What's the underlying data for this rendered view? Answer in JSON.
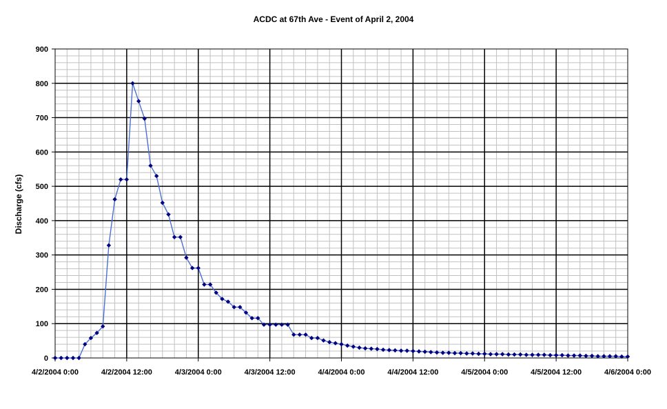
{
  "chart_data": {
    "type": "line",
    "title": "ACDC at 67th Ave - Event of April 2, 2004",
    "xlabel": "",
    "ylabel": "Discharge (cfs)",
    "ylim": [
      0,
      900
    ],
    "yticks": [
      0,
      100,
      200,
      300,
      400,
      500,
      600,
      700,
      800,
      900
    ],
    "xlim": [
      "2004-04-02T00:00",
      "2004-04-06T00:00"
    ],
    "xticks": [
      "4/2/2004 0:00",
      "4/2/2004 12:00",
      "4/3/2004 0:00",
      "4/3/2004 12:00",
      "4/4/2004 0:00",
      "4/4/2004 12:00",
      "4/5/2004 0:00",
      "4/5/2004 12:00",
      "4/6/2004 0:00"
    ],
    "grid": true,
    "legend": "none",
    "line_color": "#4a6fd6",
    "marker_color": "#000080",
    "series": [
      {
        "x": [
          "2004-04-02T00:00",
          "2004-04-02T01:00",
          "2004-04-02T02:00",
          "2004-04-02T03:00",
          "2004-04-02T04:00",
          "2004-04-02T05:00",
          "2004-04-02T06:00",
          "2004-04-02T07:00",
          "2004-04-02T08:00",
          "2004-04-02T09:00",
          "2004-04-02T10:00",
          "2004-04-02T11:00",
          "2004-04-02T12:00",
          "2004-04-02T13:00",
          "2004-04-02T14:00",
          "2004-04-02T15:00",
          "2004-04-02T16:00",
          "2004-04-02T17:00",
          "2004-04-02T18:00",
          "2004-04-02T19:00",
          "2004-04-02T20:00",
          "2004-04-02T21:00",
          "2004-04-02T22:00",
          "2004-04-02T23:00",
          "2004-04-03T00:00",
          "2004-04-03T01:00",
          "2004-04-03T02:00",
          "2004-04-03T03:00",
          "2004-04-03T04:00",
          "2004-04-03T05:00",
          "2004-04-03T06:00",
          "2004-04-03T07:00",
          "2004-04-03T08:00",
          "2004-04-03T09:00",
          "2004-04-03T10:00",
          "2004-04-03T11:00",
          "2004-04-03T12:00",
          "2004-04-03T13:00",
          "2004-04-03T14:00",
          "2004-04-03T15:00",
          "2004-04-03T16:00",
          "2004-04-03T17:00",
          "2004-04-03T18:00",
          "2004-04-03T19:00",
          "2004-04-03T20:00",
          "2004-04-03T21:00",
          "2004-04-03T22:00",
          "2004-04-03T23:00",
          "2004-04-04T00:00",
          "2004-04-04T01:00",
          "2004-04-04T02:00",
          "2004-04-04T03:00",
          "2004-04-04T04:00",
          "2004-04-04T05:00",
          "2004-04-04T06:00",
          "2004-04-04T07:00",
          "2004-04-04T08:00",
          "2004-04-04T09:00",
          "2004-04-04T10:00",
          "2004-04-04T11:00",
          "2004-04-04T12:00",
          "2004-04-04T13:00",
          "2004-04-04T14:00",
          "2004-04-04T15:00",
          "2004-04-04T16:00",
          "2004-04-04T17:00",
          "2004-04-04T18:00",
          "2004-04-04T19:00",
          "2004-04-04T20:00",
          "2004-04-04T21:00",
          "2004-04-04T22:00",
          "2004-04-04T23:00",
          "2004-04-05T00:00",
          "2004-04-05T01:00",
          "2004-04-05T02:00",
          "2004-04-05T03:00",
          "2004-04-05T04:00",
          "2004-04-05T05:00",
          "2004-04-05T06:00",
          "2004-04-05T07:00",
          "2004-04-05T08:00",
          "2004-04-05T09:00",
          "2004-04-05T10:00",
          "2004-04-05T11:00",
          "2004-04-05T12:00",
          "2004-04-05T13:00",
          "2004-04-05T14:00",
          "2004-04-05T15:00",
          "2004-04-05T16:00",
          "2004-04-05T17:00",
          "2004-04-05T18:00",
          "2004-04-05T19:00",
          "2004-04-05T20:00",
          "2004-04-05T21:00",
          "2004-04-05T22:00",
          "2004-04-05T23:00",
          "2004-04-06T00:00"
        ],
        "y": [
          0,
          0,
          0,
          0,
          0,
          40,
          58,
          73,
          92,
          328,
          462,
          520,
          520,
          800,
          748,
          697,
          560,
          530,
          452,
          418,
          352,
          352,
          292,
          262,
          262,
          214,
          214,
          190,
          172,
          164,
          148,
          148,
          132,
          116,
          116,
          97,
          97,
          97,
          97,
          97,
          68,
          68,
          68,
          58,
          58,
          51,
          46,
          43,
          40,
          36,
          33,
          30,
          28,
          27,
          26,
          24,
          23,
          22,
          21,
          21,
          20,
          19,
          18,
          17,
          16,
          15,
          15,
          14,
          14,
          13,
          13,
          12,
          12,
          11,
          11,
          11,
          10,
          10,
          10,
          9,
          9,
          9,
          9,
          8,
          8,
          8,
          7,
          7,
          7,
          6,
          6,
          5,
          5,
          5,
          5,
          4,
          4
        ]
      }
    ]
  }
}
